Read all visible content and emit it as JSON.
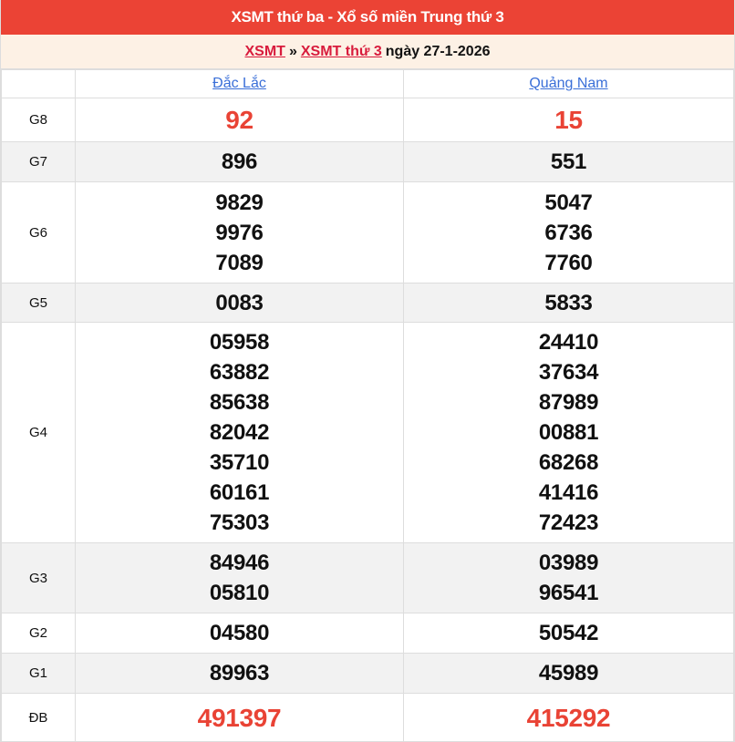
{
  "header": {
    "title": "XSMT thứ ba - Xổ số miền Trung thứ 3"
  },
  "breadcrumb": {
    "link1": "XSMT",
    "sep": "»",
    "link2": "XSMT thứ 3",
    "date_text": "ngày 27-1-2026"
  },
  "provinces": [
    "Đắc Lắc",
    "Quảng Nam"
  ],
  "colors": {
    "header_bg": "#eb4335",
    "highlight": "#e94335",
    "link": "#3a6fd8"
  },
  "prizes": [
    {
      "label": "G8",
      "values": [
        [
          "92"
        ],
        [
          "15"
        ]
      ]
    },
    {
      "label": "G7",
      "values": [
        [
          "896"
        ],
        [
          "551"
        ]
      ]
    },
    {
      "label": "G6",
      "values": [
        [
          "9829",
          "9976",
          "7089"
        ],
        [
          "5047",
          "6736",
          "7760"
        ]
      ]
    },
    {
      "label": "G5",
      "values": [
        [
          "0083"
        ],
        [
          "5833"
        ]
      ]
    },
    {
      "label": "G4",
      "values": [
        [
          "05958",
          "63882",
          "85638",
          "82042",
          "35710",
          "60161",
          "75303"
        ],
        [
          "24410",
          "37634",
          "87989",
          "00881",
          "68268",
          "41416",
          "72423"
        ]
      ]
    },
    {
      "label": "G3",
      "values": [
        [
          "84946",
          "05810"
        ],
        [
          "03989",
          "96541"
        ]
      ]
    },
    {
      "label": "G2",
      "values": [
        [
          "04580"
        ],
        [
          "50542"
        ]
      ]
    },
    {
      "label": "G1",
      "values": [
        [
          "89963"
        ],
        [
          "45989"
        ]
      ]
    },
    {
      "label": "ĐB",
      "values": [
        [
          "491397"
        ],
        [
          "415292"
        ]
      ]
    }
  ]
}
